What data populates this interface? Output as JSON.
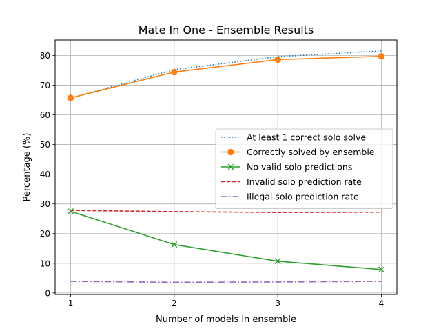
{
  "chart_data": {
    "type": "line",
    "title": "Mate In One - Ensemble Results",
    "xlabel": "Number of models in ensemble",
    "ylabel": "Percentage (%)",
    "x": [
      1,
      2,
      3,
      4
    ],
    "xticks": [
      "1",
      "2",
      "3",
      "4"
    ],
    "yticks": [
      "0",
      "10",
      "20",
      "30",
      "40",
      "50",
      "60",
      "70",
      "80"
    ],
    "xlim": [
      0.85,
      4.15
    ],
    "ylim": [
      -0.5,
      85.2
    ],
    "grid": true,
    "legend_position": "center-right",
    "series": [
      {
        "name": "At least 1 correct solo solve",
        "values": [
          65.7,
          75.2,
          79.6,
          81.5
        ],
        "color": "#1f77b4",
        "linestyle": "dotted",
        "marker": "none"
      },
      {
        "name": "Correctly solved by ensemble",
        "values": [
          65.7,
          74.4,
          78.6,
          79.7
        ],
        "color": "#ff7f0e",
        "linestyle": "solid",
        "marker": "circle"
      },
      {
        "name": "No valid solo predictions",
        "values": [
          27.5,
          16.3,
          10.7,
          7.9
        ],
        "color": "#2ca02c",
        "linestyle": "solid",
        "marker": "x"
      },
      {
        "name": "Invalid solo prediction rate",
        "values": [
          27.8,
          27.4,
          27.1,
          27.2
        ],
        "color": "#d62728",
        "linestyle": "dashed",
        "marker": "none"
      },
      {
        "name": "Illegal solo prediction rate",
        "values": [
          3.9,
          3.6,
          3.7,
          3.9
        ],
        "color": "#9467bd",
        "linestyle": "dashdot",
        "marker": "none"
      }
    ]
  }
}
